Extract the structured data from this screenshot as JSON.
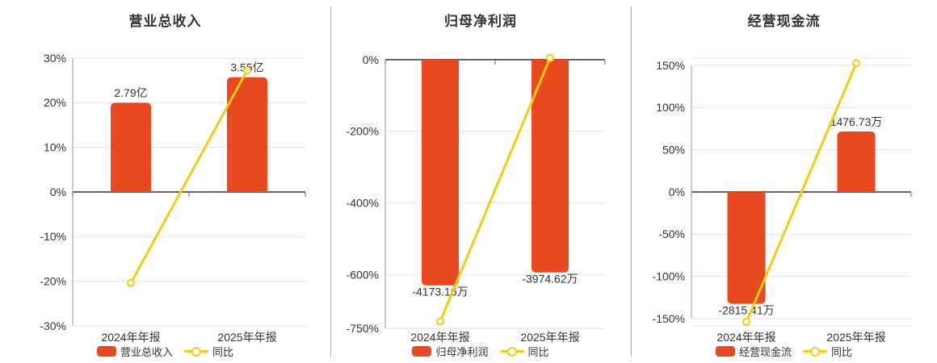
{
  "colors": {
    "bar": "#E8491F",
    "line": "#F6CB13",
    "grid": "#DEE5EF",
    "zero_axis": "#666666",
    "axis_line": "#999999",
    "text": "#333333",
    "divider": "#ABABAB"
  },
  "chart_data": [
    {
      "type": "combo-bar-line",
      "title": "营业总收入",
      "categories": [
        "2024年年报",
        "2025年年报"
      ],
      "ylim": [
        -30,
        30
      ],
      "y_ticks": [
        30,
        20,
        10,
        0,
        -10,
        -20,
        -30
      ],
      "y_tick_suffix": "%",
      "grid": "on",
      "legend_position": "bottom",
      "series": [
        {
          "type": "bar",
          "name": "营业总收入",
          "unit": "亿",
          "values": [
            2.79,
            3.55
          ],
          "value_labels": [
            "2.79亿",
            "3.55亿"
          ],
          "plotted_pct": [
            20,
            25.7
          ]
        },
        {
          "type": "line",
          "name": "同比",
          "values_pct": [
            -20.4,
            27.24
          ]
        }
      ]
    },
    {
      "type": "combo-bar-line",
      "title": "归母净利润",
      "categories": [
        "2024年年报",
        "2025年年报"
      ],
      "ylim": [
        -750,
        0
      ],
      "y_ticks": [
        0,
        -200,
        -400,
        -600,
        -750
      ],
      "y_tick_suffix": "%",
      "grid": "on",
      "legend_position": "bottom",
      "series": [
        {
          "type": "bar",
          "name": "归母净利润",
          "unit": "万",
          "values": [
            -4173.16,
            -3974.62
          ],
          "value_labels": [
            "-4173.16万",
            "-3974.62万"
          ],
          "plotted_pct": [
            -630,
            -594
          ]
        },
        {
          "type": "line",
          "name": "同比",
          "values_pct": [
            -731,
            4.76
          ]
        }
      ]
    },
    {
      "type": "combo-bar-line",
      "title": "经营现金流",
      "categories": [
        "2024年年报",
        "2025年年报"
      ],
      "ylim": [
        -150,
        150
      ],
      "y_ticks": [
        150,
        100,
        50,
        0,
        -50,
        -100,
        -150
      ],
      "y_tick_suffix": "%",
      "grid": "on",
      "legend_position": "bottom",
      "series": [
        {
          "type": "bar",
          "name": "经营现金流",
          "unit": "万",
          "values": [
            -2815.41,
            1476.73
          ],
          "value_labels": [
            "-2815.41万",
            "1476.73万"
          ],
          "plotted_pct": [
            -132.5,
            71.6
          ]
        },
        {
          "type": "line",
          "name": "同比",
          "values_pct": [
            -154,
            152.45
          ]
        }
      ]
    }
  ]
}
